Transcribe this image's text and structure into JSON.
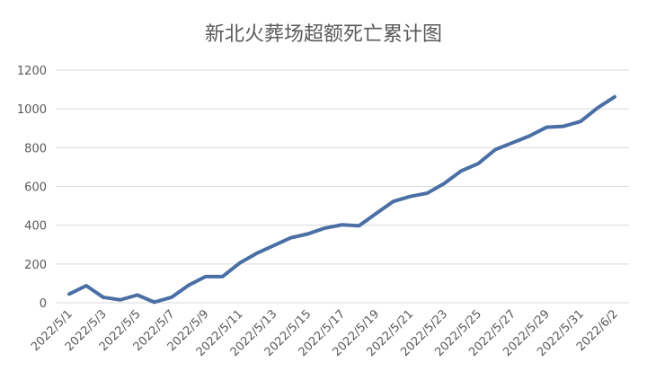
{
  "chart_data": {
    "type": "line",
    "title": "新北火葬场超额死亡累计图",
    "categories": [
      "2022/5/1",
      null,
      "2022/5/3",
      null,
      "2022/5/5",
      null,
      "2022/5/7",
      null,
      "2022/5/9",
      null,
      "2022/5/11",
      null,
      "2022/5/13",
      null,
      "2022/5/15",
      null,
      "2022/5/17",
      null,
      "2022/5/19",
      null,
      "2022/5/21",
      null,
      "2022/5/23",
      null,
      "2022/5/25",
      null,
      "2022/5/27",
      null,
      "2022/5/29",
      null,
      "2022/5/31",
      null,
      "2022/6/2"
    ],
    "series": [
      {
        "name": "超额死亡累计",
        "color": "#4a6fa5",
        "values": [
          45,
          88,
          28,
          15,
          40,
          3,
          28,
          90,
          135,
          135,
          205,
          255,
          295,
          335,
          355,
          385,
          402,
          397,
          460,
          522,
          548,
          565,
          615,
          680,
          718,
          790,
          825,
          860,
          905,
          910,
          935,
          1005,
          1062
        ]
      }
    ],
    "ylim": [
      0,
      1200
    ],
    "yticks": [
      0,
      200,
      400,
      600,
      800,
      1000,
      1200
    ],
    "grid": true
  }
}
